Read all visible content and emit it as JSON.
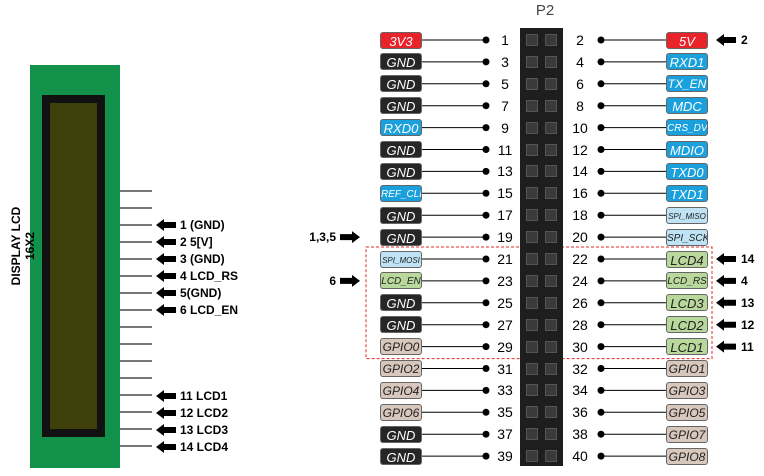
{
  "header": {
    "label": "P2"
  },
  "lcd": {
    "title": "DISPLAY LCD 16X2"
  },
  "colors": {
    "red": "#e8242a",
    "black": "#262626",
    "blue": "#1aa0dd",
    "lightblue": "#bfe3f4",
    "green": "#b9d99c",
    "tan": "#d8c7bc",
    "header_body": "#1e1e1e",
    "board": "#12914a",
    "screen": "#3f3f0b"
  },
  "pins_left": [
    {
      "pin": "1",
      "label": "3V3",
      "color": "red"
    },
    {
      "pin": "3",
      "label": "GND",
      "color": "black"
    },
    {
      "pin": "5",
      "label": "GND",
      "color": "black"
    },
    {
      "pin": "7",
      "label": "GND",
      "color": "black"
    },
    {
      "pin": "9",
      "label": "RXD0",
      "color": "blue"
    },
    {
      "pin": "11",
      "label": "GND",
      "color": "black"
    },
    {
      "pin": "13",
      "label": "GND",
      "color": "black"
    },
    {
      "pin": "15",
      "label": "REF_CLK",
      "color": "blue"
    },
    {
      "pin": "17",
      "label": "GND",
      "color": "black"
    },
    {
      "pin": "19",
      "label": "GND",
      "color": "black"
    },
    {
      "pin": "21",
      "label": "SPI_MOSI",
      "color": "lightblue"
    },
    {
      "pin": "23",
      "label": "LCD_EN",
      "color": "green"
    },
    {
      "pin": "25",
      "label": "GND",
      "color": "black"
    },
    {
      "pin": "27",
      "label": "GND",
      "color": "black"
    },
    {
      "pin": "29",
      "label": "GPIO0",
      "color": "tan"
    },
    {
      "pin": "31",
      "label": "GPIO2",
      "color": "tan"
    },
    {
      "pin": "33",
      "label": "GPIO4",
      "color": "tan"
    },
    {
      "pin": "35",
      "label": "GPIO6",
      "color": "tan"
    },
    {
      "pin": "37",
      "label": "GND",
      "color": "black"
    },
    {
      "pin": "39",
      "label": "GND",
      "color": "black"
    }
  ],
  "pins_right": [
    {
      "pin": "2",
      "label": "5V",
      "color": "red"
    },
    {
      "pin": "4",
      "label": "RXD1",
      "color": "blue"
    },
    {
      "pin": "6",
      "label": "TX_EN",
      "color": "blue"
    },
    {
      "pin": "8",
      "label": "MDC",
      "color": "blue"
    },
    {
      "pin": "10",
      "label": "CRS_DV",
      "color": "blue"
    },
    {
      "pin": "12",
      "label": "MDIO",
      "color": "blue"
    },
    {
      "pin": "14",
      "label": "TXD0",
      "color": "blue"
    },
    {
      "pin": "16",
      "label": "TXD1",
      "color": "blue"
    },
    {
      "pin": "18",
      "label": "SPI_MISO",
      "color": "lightblue"
    },
    {
      "pin": "20",
      "label": "SPI_SCK",
      "color": "lightblue"
    },
    {
      "pin": "22",
      "label": "LCD4",
      "color": "green"
    },
    {
      "pin": "24",
      "label": "LCD_RS",
      "color": "green"
    },
    {
      "pin": "26",
      "label": "LCD3",
      "color": "green"
    },
    {
      "pin": "28",
      "label": "LCD2",
      "color": "green"
    },
    {
      "pin": "30",
      "label": "LCD1",
      "color": "green"
    },
    {
      "pin": "32",
      "label": "GPIO1",
      "color": "tan"
    },
    {
      "pin": "34",
      "label": "GPIO3",
      "color": "tan"
    },
    {
      "pin": "36",
      "label": "GPIO5",
      "color": "tan"
    },
    {
      "pin": "38",
      "label": "GPIO7",
      "color": "tan"
    },
    {
      "pin": "40",
      "label": "GPIO8",
      "color": "tan"
    }
  ],
  "lcd_pins": [
    {
      "text": "1 (GND)"
    },
    {
      "text": "2 5[V]"
    },
    {
      "text": "3 (GND)"
    },
    {
      "text": "4 LCD_RS"
    },
    {
      "text": "5(GND)"
    },
    {
      "text": "6 LCD_EN"
    },
    {
      "text": "11  LCD1"
    },
    {
      "text": "12  LCD2"
    },
    {
      "text": "13  LCD3"
    },
    {
      "text": "14  LCD4"
    }
  ],
  "callouts": [
    {
      "text": "2",
      "side": "right",
      "row": 0
    },
    {
      "text": "1,3,5",
      "side": "left",
      "row": 9
    },
    {
      "text": "14",
      "side": "right",
      "row": 10
    },
    {
      "text": "6",
      "side": "left",
      "row": 11
    },
    {
      "text": "4",
      "side": "right",
      "row": 11
    },
    {
      "text": "13",
      "side": "right",
      "row": 12
    },
    {
      "text": "12",
      "side": "right",
      "row": 13
    },
    {
      "text": "11",
      "side": "right",
      "row": 14
    }
  ]
}
